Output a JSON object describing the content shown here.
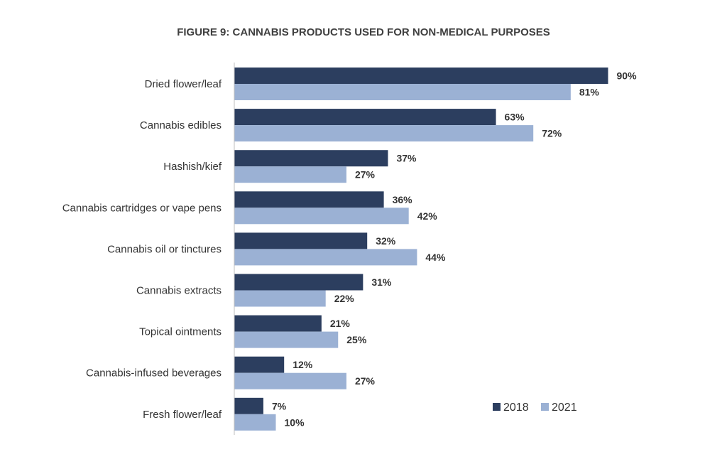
{
  "chart_data": {
    "type": "bar",
    "orientation": "horizontal",
    "title": "FIGURE 9: CANNABIS PRODUCTS USED FOR NON-MEDICAL PURPOSES",
    "categories": [
      "Dried flower/leaf",
      "Cannabis edibles",
      "Hashish/kief",
      "Cannabis cartridges or vape pens",
      "Cannabis oil or tinctures",
      "Cannabis extracts",
      "Topical ointments",
      "Cannabis-infused beverages",
      "Fresh flower/leaf"
    ],
    "series": [
      {
        "name": "2018",
        "color": "#2c3e5f",
        "values": [
          90,
          63,
          37,
          36,
          32,
          31,
          21,
          12,
          7
        ]
      },
      {
        "name": "2021",
        "color": "#9bb1d4",
        "values": [
          81,
          72,
          27,
          42,
          44,
          22,
          25,
          27,
          10
        ]
      }
    ],
    "value_suffix": "%",
    "xlim": [
      0,
      100
    ],
    "grid": false,
    "legend": "bottom-right"
  }
}
